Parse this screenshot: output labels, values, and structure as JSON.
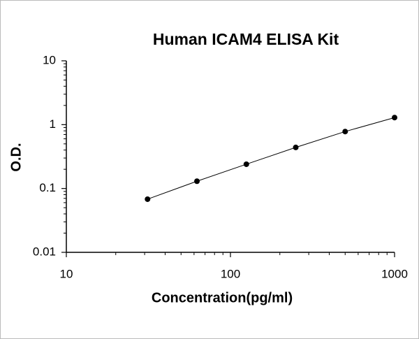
{
  "chart_data": {
    "type": "scatter",
    "title": "Human ICAM4 ELISA Kit",
    "x_label": "Concentration(pg/ml)",
    "y_label": "O.D.",
    "x": [
      31.25,
      62.5,
      125,
      250,
      500,
      1000
    ],
    "values": [
      0.068,
      0.13,
      0.24,
      0.44,
      0.78,
      1.29
    ],
    "color": "#000000",
    "line": true,
    "xlog": true,
    "ylog": true,
    "xlim": [
      10,
      1000
    ],
    "ylim": [
      0.01,
      10
    ],
    "xticks": [
      10,
      100,
      1000
    ],
    "yticks": [
      0.01,
      0.1,
      1,
      10
    ]
  }
}
